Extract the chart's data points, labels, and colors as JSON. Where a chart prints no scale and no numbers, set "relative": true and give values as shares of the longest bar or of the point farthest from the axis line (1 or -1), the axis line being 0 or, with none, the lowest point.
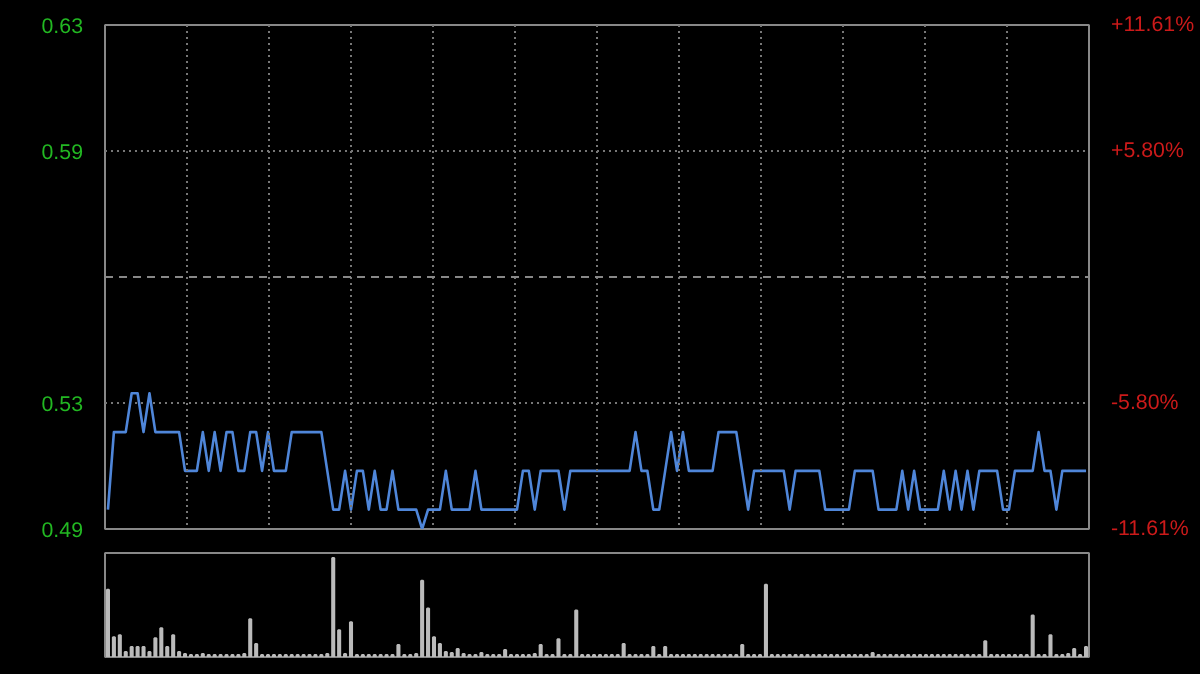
{
  "chart_data": [
    {
      "type": "line",
      "categories": [
        null,
        null,
        null,
        null,
        null,
        null,
        null,
        null,
        null,
        null,
        null,
        null,
        null,
        null,
        null,
        null,
        null,
        null,
        null,
        null,
        null,
        null,
        null,
        null,
        null,
        null,
        null,
        null,
        null,
        null,
        null,
        null,
        null,
        null,
        null,
        null,
        null,
        null,
        null,
        null,
        null,
        null,
        null,
        null,
        null,
        null,
        null,
        null,
        null,
        null,
        null,
        null,
        null,
        null,
        null,
        null,
        null,
        null,
        null,
        null,
        null,
        null,
        null,
        null,
        null,
        null,
        null,
        null,
        null,
        null,
        null,
        null,
        null,
        null,
        null,
        null,
        null,
        null,
        null,
        null,
        null,
        null,
        null,
        null,
        null,
        null,
        null,
        null,
        null,
        null,
        null,
        null,
        null,
        null,
        null,
        null,
        null,
        null,
        null,
        null,
        null,
        null,
        null,
        null,
        null,
        null,
        null,
        null,
        null,
        null,
        null,
        null,
        null,
        null,
        null,
        null,
        null,
        null,
        null,
        null,
        null,
        null,
        null,
        null,
        null,
        null,
        null,
        null,
        null,
        null,
        null,
        null,
        null,
        null,
        null,
        null,
        null,
        null,
        null,
        null,
        null,
        null,
        null,
        null,
        null,
        null,
        null,
        null,
        null,
        null,
        null,
        null,
        null,
        null,
        null,
        null,
        null,
        null,
        null,
        null,
        null,
        null,
        null,
        null,
        null,
        null
      ],
      "series": [
        {
          "color": "#4f86d9",
          "values": [
            0.5,
            0.52,
            0.52,
            0.52,
            0.53,
            0.53,
            0.52,
            0.53,
            0.52,
            0.52,
            0.52,
            0.52,
            0.52,
            0.51,
            0.51,
            0.51,
            0.52,
            0.51,
            0.52,
            0.51,
            0.52,
            0.52,
            0.51,
            0.51,
            0.52,
            0.52,
            0.51,
            0.52,
            0.51,
            0.51,
            0.51,
            0.52,
            0.52,
            0.52,
            0.52,
            0.52,
            0.52,
            0.51,
            0.5,
            0.5,
            0.51,
            0.5,
            0.51,
            0.51,
            0.5,
            0.51,
            0.5,
            0.5,
            0.51,
            0.5,
            0.5,
            0.5,
            0.5,
            0.495,
            0.5,
            0.5,
            0.5,
            0.51,
            0.5,
            0.5,
            0.5,
            0.5,
            0.51,
            0.5,
            0.5,
            0.5,
            0.5,
            0.5,
            0.5,
            0.5,
            0.51,
            0.51,
            0.5,
            0.51,
            0.51,
            0.51,
            0.51,
            0.5,
            0.51,
            0.51,
            0.51,
            0.51,
            0.51,
            0.51,
            0.51,
            0.51,
            0.51,
            0.51,
            0.51,
            0.52,
            0.51,
            0.51,
            0.5,
            0.5,
            0.51,
            0.52,
            0.51,
            0.52,
            0.51,
            0.51,
            0.51,
            0.51,
            0.51,
            0.52,
            0.52,
            0.52,
            0.52,
            0.51,
            0.5,
            0.51,
            0.51,
            0.51,
            0.51,
            0.51,
            0.51,
            0.5,
            0.51,
            0.51,
            0.51,
            0.51,
            0.51,
            0.5,
            0.5,
            0.5,
            0.5,
            0.5,
            0.51,
            0.51,
            0.51,
            0.51,
            0.5,
            0.5,
            0.5,
            0.5,
            0.51,
            0.5,
            0.51,
            0.5,
            0.5,
            0.5,
            0.5,
            0.51,
            0.5,
            0.51,
            0.5,
            0.51,
            0.5,
            0.51,
            0.51,
            0.51,
            0.51,
            0.5,
            0.5,
            0.51,
            0.51,
            0.51,
            0.51,
            0.52,
            0.51,
            0.51,
            0.5,
            0.51,
            0.51,
            0.51,
            0.51,
            0.51
          ]
        }
      ],
      "ylim": [
        0.495,
        0.625
      ],
      "yticks": [
        {
          "value": 0.625,
          "label": "0.63"
        },
        {
          "value": 0.5925,
          "label": "0.59"
        },
        {
          "value": 0.5275,
          "label": "0.53"
        },
        {
          "value": 0.495,
          "label": "0.49"
        }
      ],
      "y2lim": [
        -11.61,
        11.61
      ],
      "y2ticks": [
        {
          "value": 11.61,
          "label": "+11.61%"
        },
        {
          "value": 5.8,
          "label": "+5.80%"
        },
        {
          "value": -5.8,
          "label": "-5.80%"
        },
        {
          "value": -11.61,
          "label": "-11.61%"
        }
      ],
      "ref_lines": [
        {
          "axis": "y",
          "value": 0.56,
          "line_style": "dashed",
          "color": "#888888"
        }
      ],
      "grid": true
    },
    {
      "type": "bar",
      "relative": true,
      "color": "#bbbbbb",
      "categories": [
        null,
        null,
        null,
        null,
        null,
        null,
        null,
        null,
        null,
        null,
        null,
        null,
        null,
        null,
        null,
        null,
        null,
        null,
        null,
        null,
        null,
        null,
        null,
        null,
        null,
        null,
        null,
        null,
        null,
        null,
        null,
        null,
        null,
        null,
        null,
        null,
        null,
        null,
        null,
        null,
        null,
        null,
        null,
        null,
        null,
        null,
        null,
        null,
        null,
        null,
        null,
        null,
        null,
        null,
        null,
        null,
        null,
        null,
        null,
        null,
        null,
        null,
        null,
        null,
        null,
        null,
        null,
        null,
        null,
        null,
        null,
        null,
        null,
        null,
        null,
        null,
        null,
        null,
        null,
        null,
        null,
        null,
        null,
        null,
        null,
        null,
        null,
        null,
        null,
        null,
        null,
        null,
        null,
        null,
        null,
        null,
        null,
        null,
        null,
        null,
        null,
        null,
        null,
        null,
        null,
        null,
        null,
        null,
        null,
        null,
        null,
        null,
        null,
        null,
        null,
        null,
        null,
        null,
        null,
        null,
        null,
        null,
        null,
        null,
        null,
        null,
        null,
        null,
        null,
        null,
        null,
        null,
        null,
        null,
        null,
        null,
        null,
        null,
        null,
        null,
        null,
        null,
        null,
        null,
        null,
        null,
        null,
        null,
        null,
        null,
        null,
        null,
        null,
        null,
        null,
        null,
        null,
        null,
        null,
        null,
        null,
        null,
        null,
        null,
        null,
        null
      ],
      "values": [
        0.68,
        0.2,
        0.22,
        0.05,
        0.1,
        0.1,
        0.1,
        0.05,
        0.19,
        0.29,
        0.1,
        0.22,
        0.05,
        0.03,
        0.02,
        0.02,
        0.03,
        0.02,
        0.02,
        0.02,
        0.02,
        0.02,
        0.02,
        0.03,
        0.38,
        0.13,
        0.02,
        0.02,
        0.02,
        0.02,
        0.02,
        0.02,
        0.02,
        0.02,
        0.02,
        0.02,
        0.02,
        0.03,
        1,
        0.27,
        0.03,
        0.35,
        0.02,
        0.02,
        0.02,
        0.02,
        0.02,
        0.02,
        0.02,
        0.12,
        0.02,
        0.02,
        0.03,
        0.77,
        0.49,
        0.2,
        0.13,
        0.05,
        0.04,
        0.08,
        0.03,
        0.02,
        0.02,
        0.04,
        0.02,
        0.02,
        0.02,
        0.07,
        0.02,
        0.02,
        0.02,
        0.02,
        0.03,
        0.12,
        0.02,
        0.02,
        0.18,
        0.02,
        0.02,
        0.47,
        0.02,
        0.02,
        0.02,
        0.02,
        0.02,
        0.02,
        0.02,
        0.13,
        0.02,
        0.02,
        0.02,
        0.02,
        0.1,
        0.02,
        0.1,
        0.02,
        0.02,
        0.02,
        0.02,
        0.02,
        0.02,
        0.02,
        0.02,
        0.02,
        0.02,
        0.02,
        0.02,
        0.12,
        0.02,
        0.02,
        0.02,
        0.73,
        0.02,
        0.02,
        0.02,
        0.02,
        0.02,
        0.02,
        0.02,
        0.02,
        0.02,
        0.02,
        0.02,
        0.02,
        0.02,
        0.02,
        0.02,
        0.02,
        0.02,
        0.04,
        0.02,
        0.02,
        0.02,
        0.02,
        0.02,
        0.02,
        0.02,
        0.02,
        0.02,
        0.02,
        0.02,
        0.02,
        0.02,
        0.02,
        0.02,
        0.02,
        0.02,
        0.02,
        0.16,
        0.02,
        0.02,
        0.02,
        0.02,
        0.02,
        0.02,
        0.02,
        0.42,
        0.02,
        0.02,
        0.22,
        0.02,
        0.02,
        0.03,
        0.08,
        0.02,
        0.1
      ]
    }
  ]
}
